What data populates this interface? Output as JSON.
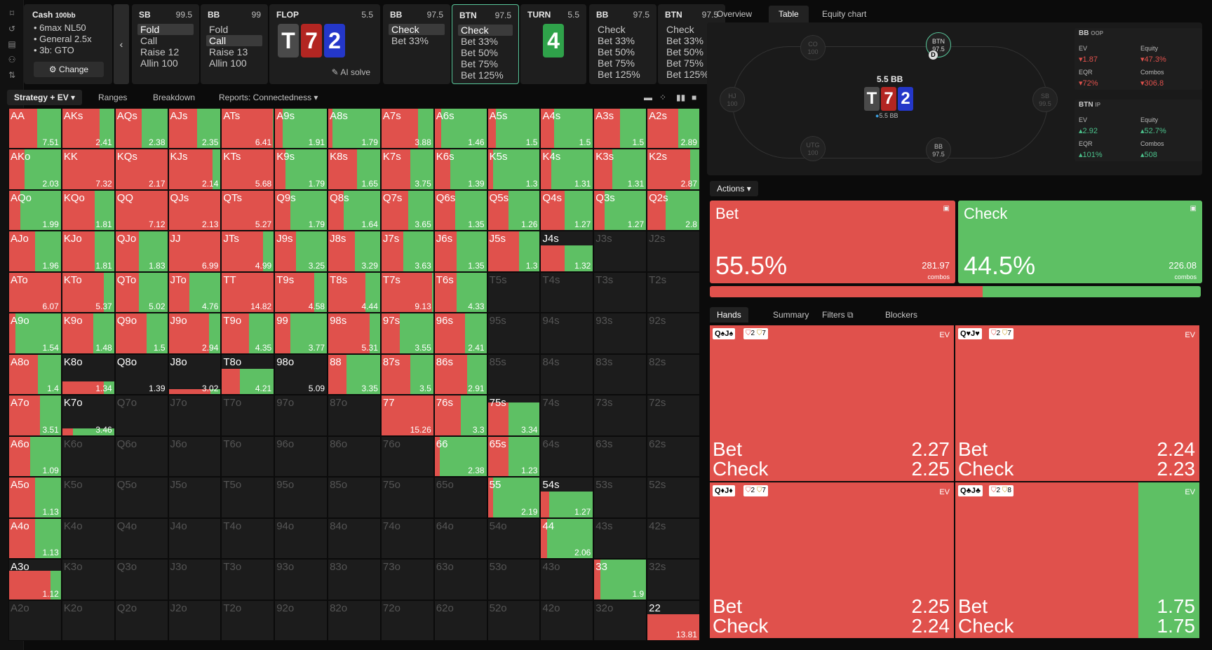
{
  "sidebar_icons": [
    "bookmark-icon",
    "history-icon",
    "save-icon",
    "gamepad-icon",
    "settings-icon"
  ],
  "colors": {
    "fold": "#3a3a3a",
    "call": "#58c69a",
    "bet": "#e0514c",
    "check": "#5ec064",
    "card_t": "#4a4a4a",
    "card_7": "#b32622",
    "card_2": "#2437c9",
    "card_4": "#2fa24a",
    "accent": "#58c69a"
  },
  "scenario": {
    "title": "Cash",
    "stack": "100bb",
    "lines": [
      "6max NL50",
      "General 2.5x",
      "3b: GTO"
    ],
    "change": "Change"
  },
  "cards": [
    {
      "id": "sb",
      "pos": "SB",
      "val": "99.5",
      "actions": [
        {
          "t": "Fold",
          "sel": true
        },
        {
          "t": "Call"
        },
        {
          "t": "Raise 12"
        },
        {
          "t": "Allin 100"
        }
      ]
    },
    {
      "id": "bb",
      "pos": "BB",
      "val": "99",
      "actions": [
        {
          "t": "Fold"
        },
        {
          "t": "Call",
          "sel": true
        },
        {
          "t": "Raise 13"
        },
        {
          "t": "Allin 100"
        }
      ]
    },
    {
      "id": "bb2",
      "pos": "BB",
      "val": "97.5",
      "actions": [
        {
          "t": "Check",
          "sel": true
        },
        {
          "t": "Bet 33%"
        }
      ]
    },
    {
      "id": "btn",
      "pos": "BTN",
      "val": "97.5",
      "active": true,
      "actions": [
        {
          "t": "Check",
          "sel": true
        },
        {
          "t": "Bet 33%"
        },
        {
          "t": "Bet 50%"
        },
        {
          "t": "Bet 75%"
        },
        {
          "t": "Bet 125%"
        }
      ]
    },
    {
      "id": "bb3",
      "pos": "BB",
      "val": "97.5",
      "actions": [
        {
          "t": "Check"
        },
        {
          "t": "Bet 33%"
        },
        {
          "t": "Bet 50%"
        },
        {
          "t": "Bet 75%"
        },
        {
          "t": "Bet 125%"
        }
      ]
    },
    {
      "id": "btn2",
      "pos": "BTN",
      "val": "97.5",
      "actions": [
        {
          "t": "Check"
        },
        {
          "t": "Bet 33%"
        },
        {
          "t": "Bet 50%"
        },
        {
          "t": "Bet 75%"
        },
        {
          "t": "Bet 125%"
        }
      ]
    }
  ],
  "flop": {
    "label": "FLOP",
    "pot": "5.5",
    "cards": [
      "T",
      "7",
      "2"
    ],
    "ai_solve": "AI solve"
  },
  "turn": {
    "label": "TURN",
    "pot": "5.5",
    "card": "4"
  },
  "toolbar": {
    "strategy": "Strategy + EV",
    "ranges": "Ranges",
    "breakdown": "Breakdown",
    "reports": "Reports: Connectedness"
  },
  "matrix": [
    [
      "AA|1|0.54|7.51",
      "AKs|1|0.72|2.41",
      "AQs|1|0.5|2.38",
      "AJs|1|0.55|2.35",
      "ATs|1|0.98|6.41",
      "A9s|1|0.15|1.91",
      "A8s|1|0.08|1.79",
      "A7s|1|0.7|3.88",
      "A6s|1|0.12|1.46",
      "A5s|1|0.15|1.5",
      "A4s|1|0.25|1.5",
      "A3s|1|0.5|1.5",
      "A2s|1|0.6|2.89"
    ],
    [
      "AKo|1|0.3|2.03",
      "KK|1|1|7.32",
      "KQs|1|1|2.17",
      "KJs|1|0.85|2.14",
      "KTs|1|1|5.68",
      "K9s|1|0.2|1.79",
      "K8s|1|0.55|1.65",
      "K7s|1|0.55|3.75",
      "K6s|1|0.3|1.39",
      "K5s|1|0.1|1.3",
      "K4s|1|0.2|1.31",
      "K3s|1|0.35|1.31",
      "K2s|1|0.82|2.87"
    ],
    [
      "AQo|1|0.22|1.99",
      "KQo|1|0.62|1.81",
      "QQ|1|1|7.12",
      "QJs|1|1|2.13",
      "QTs|1|1|5.27",
      "Q9s|1|0.3|1.79",
      "Q8s|1|0.3|1.64",
      "Q7s|1|0.52|3.65",
      "Q6s|1|0.4|1.35",
      "Q5s|1|0.4|1.26",
      "Q4s|1|0.45|1.27",
      "Q3s|1|0.2|1.27",
      "Q2s|1|0.35|2.8"
    ],
    [
      "AJo|1|0.5|1.96",
      "KJo|1|0.62|1.81",
      "QJo|1|0.45|1.83",
      "JJ|1|1|6.99",
      "JTs|1|0.8|4.99",
      "J9s|1|0.4|3.25",
      "J8s|1|0.52|3.29",
      "J7s|1|0.42|3.63",
      "J6s|1|0.42|1.35",
      "J5s|1|0.6|1.3",
      "J4s|0.65|0.45|1.32",
      "J3s|0|0|",
      "J2s|0|0|"
    ],
    [
      "ATo|1|1|6.07",
      "KTo|1|0.8|5.37",
      "QTo|1|0.45|5.02",
      "JTo|1|0.4|4.76",
      "TT|1|1|14.82",
      "T9s|1|0.75|4.58",
      "T8s|1|0.72|4.44",
      "T7s|1|0.98|9.13",
      "T6s|1|0.42|4.33",
      "T5s|0|0|",
      "T4s|0|0|",
      "T3s|0|0|",
      "T2s|0|0|"
    ],
    [
      "A9o|1|0.12|1.54",
      "K9o|1|0.6|1.48",
      "Q9o|1|0.6|1.5",
      "J9o|1|0.78|2.94",
      "T9o|1|0.52|4.35",
      "99|1|0.3|3.77",
      "98s|1|0.8|5.31",
      "97s|1|0.35|3.55",
      "96s|1|0.58|2.41",
      "95s|0|0|",
      "94s|0|0|",
      "93s|0|0|",
      "92s|0|0|"
    ],
    [
      "A8o|1|0.55|1.4",
      "K8o|0.32|0.8|1.34",
      "Q8o|0|0|1.39",
      "J8o|0.12|0.8|3.02",
      "T8o|0.65|0.35|4.21",
      "98o|0|0|5.09",
      "88|1|0.35|3.35",
      "87s|1|0.55|3.5",
      "86s|1|0.62|2.91",
      "85s|0|0|",
      "84s|0|0|",
      "83s|0|0|",
      "82s|0|0|"
    ],
    [
      "A7o|1|0.6|3.51",
      "K7o|0.18|0.2|3.46",
      "Q7o|0|0|",
      "J7o|0|0|",
      "T7o|0|0|",
      "97o|0|0|",
      "87o|0|0|",
      "77|1|1|15.26",
      "76s|1|0.5|3.3",
      "75s|0.82|0.4|3.34",
      "74s|0|0|",
      "73s|0|0|",
      "72s|0|0|"
    ],
    [
      "A6o|1|0.4|1.09",
      "K6o|0|0|",
      "Q6o|0|0|",
      "J6o|0|0|",
      "T6o|0|0|",
      "96o|0|0|",
      "86o|0|0|",
      "76o|0|0|",
      "66|1|0.1|2.38",
      "65s|1|0.4|1.23",
      "64s|0|0|",
      "63s|0|0|",
      "62s|0|0|"
    ],
    [
      "A5o|1|0.5|1.13",
      "K5o|0|0|",
      "Q5o|0|0|",
      "J5o|0|0|",
      "T5o|0|0|",
      "95o|0|0|",
      "85o|0|0|",
      "75o|0|0|",
      "65o|0|0|",
      "55|1|0.1|2.19",
      "54s|0.65|0.15|1.27",
      "53s|0|0|",
      "52s|0|0|"
    ],
    [
      "A4o|1|0.5|1.13",
      "K4o|0|0|",
      "Q4o|0|0|",
      "J4o|0|0|",
      "T4o|0|0|",
      "94o|0|0|",
      "84o|0|0|",
      "74o|0|0|",
      "64o|0|0|",
      "54o|0|0|",
      "44|1|0.12|2.06",
      "43s|0|0|",
      "42s|0|0|"
    ],
    [
      "A3o|0.72|0.8|1.12",
      "K3o|0|0|",
      "Q3o|0|0|",
      "J3o|0|0|",
      "T3o|0|0|",
      "93o|0|0|",
      "83o|0|0|",
      "73o|0|0|",
      "63o|0|0|",
      "53o|0|0|",
      "43o|0|0|",
      "33|1|0.12|1.9",
      "32s|0|0|"
    ],
    [
      "A2o|0|0|",
      "K2o|0|0|",
      "Q2o|0|0|",
      "J2o|0|0|",
      "T2o|0|0|",
      "92o|0|0|",
      "82o|0|0|",
      "72o|0|0|",
      "62o|0|0|",
      "52o|0|0|",
      "42o|0|0|",
      "32o|0|0|",
      "22|0.65|1|13.81"
    ]
  ],
  "right_tabs": [
    "Overview",
    "Table",
    "Equity chart"
  ],
  "table": {
    "pot": "5.5 BB",
    "board": [
      "T",
      "7",
      "2"
    ],
    "pot_chip": "5.5 BB",
    "dealer": "D",
    "seats": [
      {
        "pos": "CO",
        "stack": "100"
      },
      {
        "pos": "BTN",
        "stack": "97.5"
      },
      {
        "pos": "HJ",
        "stack": "100"
      },
      {
        "pos": "SB",
        "stack": "99.5"
      },
      {
        "pos": "UTG",
        "stack": "100"
      },
      {
        "pos": "BB",
        "stack": "97.5"
      }
    ],
    "stats": [
      {
        "head": "BB",
        "tag": "OOP",
        "ev_k": "EV",
        "ev": "1.87",
        "eq_k": "Equity",
        "eq": "47.3%",
        "eqr_k": "EQR",
        "eqr": "72%",
        "co_k": "Combos",
        "co": "306.8"
      },
      {
        "head": "BTN",
        "tag": "IP",
        "ev_k": "EV",
        "ev": "2.92",
        "eq_k": "Equity",
        "eq": "52.7%",
        "eqr_k": "EQR",
        "eqr": "101%",
        "co_k": "Combos",
        "co": "508"
      }
    ]
  },
  "actions": {
    "label": "Actions",
    "bet": {
      "name": "Bet",
      "pct": "55.5%",
      "combos": "281.97",
      "cl": "combos",
      "freq": 0.555
    },
    "check": {
      "name": "Check",
      "pct": "44.5%",
      "combos": "226.08",
      "cl": "combos",
      "freq": 0.445
    }
  },
  "hand_tabs": [
    "Hands",
    "Summary",
    "Filters",
    "Blockers"
  ],
  "hands": [
    {
      "combo": "Q♠J♠",
      "b1": "2",
      "b2": "7",
      "ev": "EV",
      "bet": "2.27",
      "check": "2.25",
      "betfrac": 1
    },
    {
      "combo": "Q♥J♥",
      "b1": "2",
      "b2": "7",
      "ev": "EV",
      "bet": "2.24",
      "check": "2.23",
      "betfrac": 1
    },
    {
      "combo": "Q♦J♦",
      "b1": "2",
      "b2": "7",
      "ev": "EV",
      "bet": "2.25",
      "check": "2.24",
      "betfrac": 1
    },
    {
      "combo": "Q♣J♣",
      "b1": "2",
      "b2": "8",
      "ev": "EV",
      "bet": "1.75",
      "check": "1.75",
      "betfrac": 0.75
    }
  ],
  "hand_labels": {
    "bet": "Bet",
    "check": "Check"
  }
}
